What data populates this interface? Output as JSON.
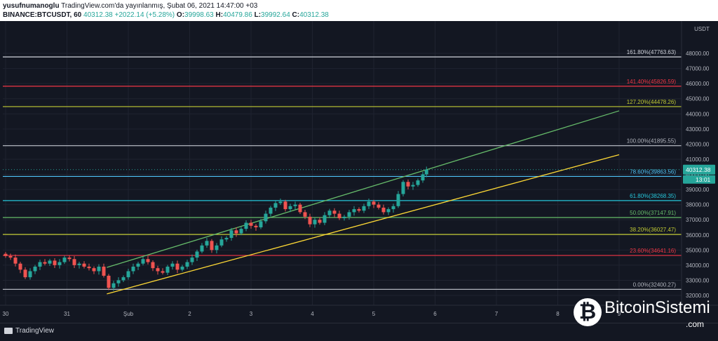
{
  "header": {
    "author": "yusufnumanoglu",
    "published": "TradingView.com'da yayınlanmış, Şubat 06, 2021 14:47:00 +03",
    "symbol": "BINANCE:BTCUSDT, 60",
    "last": "40312.38",
    "change": "+2022.14 (+5.28%)",
    "o_label": "O:",
    "o": "39998.63",
    "h_label": "H:",
    "h": "40479.86",
    "l_label": "L:",
    "l": "39992.64",
    "c_label": "C:",
    "c": "40312.38"
  },
  "footer": {
    "tradingview": "TradingView"
  },
  "watermark": {
    "icon": "bitcoin-icon",
    "name": "BitcoinSistemi",
    "tld": ".com"
  },
  "chart_data": {
    "type": "candlestick",
    "currency": "USDT",
    "price_tag": "40312.38",
    "countdown": "13:01",
    "ylim": [
      31500,
      48500
    ],
    "yticks": [
      "48000.00",
      "47000.00",
      "46000.00",
      "45000.00",
      "44000.00",
      "43000.00",
      "42000.00",
      "41000.00",
      "40000.00",
      "39000.00",
      "38000.00",
      "37000.00",
      "36000.00",
      "35000.00",
      "34000.00",
      "33000.00",
      "32000.00"
    ],
    "xticks": [
      "30",
      "31",
      "Şub",
      "2",
      "3",
      "4",
      "5",
      "6",
      "7",
      "8",
      "9"
    ],
    "fib_levels": [
      {
        "label": "161.80%(47763.63)",
        "value": 47763.63,
        "color": "#d1d4dc"
      },
      {
        "label": "141.40%(45826.59)",
        "value": 45826.59,
        "color": "#f23645"
      },
      {
        "label": "127.20%(44478.26)",
        "value": 44478.26,
        "color": "#c0ca33"
      },
      {
        "label": "100.00%(41895.55)",
        "value": 41895.55,
        "color": "#b2b5be"
      },
      {
        "label": "78.60%(39863.56)",
        "value": 39863.56,
        "color": "#4fc3f7"
      },
      {
        "label": "61.80%(38268.35)",
        "value": 38268.35,
        "color": "#26c6da"
      },
      {
        "label": "50.00%(37147.91)",
        "value": 37147.91,
        "color": "#66bb6a"
      },
      {
        "label": "38.20%(36027.47)",
        "value": 36027.47,
        "color": "#c0ca33"
      },
      {
        "label": "23.60%(34641.16)",
        "value": 34641.16,
        "color": "#f23645"
      },
      {
        "label": "0.00%(32400.27)",
        "value": 32400.27,
        "color": "#b2b5be"
      }
    ],
    "trendlines": [
      {
        "color": "#66bb6a",
        "from": [
          1.65,
          33850
        ],
        "to": [
          10.0,
          44200
        ]
      },
      {
        "color": "#fdd835",
        "from": [
          1.65,
          32100
        ],
        "to": [
          10.0,
          41300
        ]
      }
    ],
    "series_close": [
      [
        0.0,
        34600
      ],
      [
        0.08,
        34500
      ],
      [
        0.16,
        34100
      ],
      [
        0.24,
        33700
      ],
      [
        0.32,
        33200
      ],
      [
        0.4,
        33600
      ],
      [
        0.48,
        33900
      ],
      [
        0.56,
        34200
      ],
      [
        0.64,
        34100
      ],
      [
        0.72,
        34300
      ],
      [
        0.8,
        34000
      ],
      [
        0.88,
        34200
      ],
      [
        0.96,
        34500
      ],
      [
        1.04,
        34400
      ],
      [
        1.12,
        34000
      ],
      [
        1.2,
        34100
      ],
      [
        1.28,
        33900
      ],
      [
        1.36,
        33800
      ],
      [
        1.44,
        33600
      ],
      [
        1.52,
        33900
      ],
      [
        1.6,
        33300
      ],
      [
        1.68,
        32500
      ],
      [
        1.76,
        32800
      ],
      [
        1.84,
        33000
      ],
      [
        1.92,
        33200
      ],
      [
        2.0,
        33600
      ],
      [
        2.08,
        33900
      ],
      [
        2.16,
        34100
      ],
      [
        2.24,
        34400
      ],
      [
        2.32,
        34200
      ],
      [
        2.4,
        33800
      ],
      [
        2.48,
        33600
      ],
      [
        2.56,
        33500
      ],
      [
        2.64,
        33900
      ],
      [
        2.72,
        34100
      ],
      [
        2.8,
        33700
      ],
      [
        2.88,
        33900
      ],
      [
        2.96,
        34200
      ],
      [
        3.04,
        34500
      ],
      [
        3.12,
        34900
      ],
      [
        3.2,
        35300
      ],
      [
        3.28,
        35600
      ],
      [
        3.36,
        35000
      ],
      [
        3.44,
        35300
      ],
      [
        3.52,
        35700
      ],
      [
        3.6,
        35800
      ],
      [
        3.68,
        36300
      ],
      [
        3.76,
        36100
      ],
      [
        3.84,
        36400
      ],
      [
        3.92,
        36800
      ],
      [
        4.0,
        36600
      ],
      [
        4.08,
        36500
      ],
      [
        4.16,
        36900
      ],
      [
        4.24,
        37400
      ],
      [
        4.32,
        37800
      ],
      [
        4.4,
        38100
      ],
      [
        4.48,
        38200
      ],
      [
        4.56,
        37700
      ],
      [
        4.64,
        37900
      ],
      [
        4.72,
        38000
      ],
      [
        4.8,
        37500
      ],
      [
        4.88,
        37200
      ],
      [
        4.96,
        36700
      ],
      [
        5.04,
        37000
      ],
      [
        5.12,
        36800
      ],
      [
        5.2,
        37300
      ],
      [
        5.28,
        37600
      ],
      [
        5.36,
        37400
      ],
      [
        5.44,
        37100
      ],
      [
        5.52,
        37200
      ],
      [
        5.6,
        37500
      ],
      [
        5.68,
        37700
      ],
      [
        5.76,
        37600
      ],
      [
        5.84,
        37900
      ],
      [
        5.92,
        38200
      ],
      [
        6.0,
        38000
      ],
      [
        6.08,
        37800
      ],
      [
        6.16,
        37500
      ],
      [
        6.24,
        37700
      ],
      [
        6.32,
        37900
      ],
      [
        6.4,
        38700
      ],
      [
        6.48,
        39500
      ],
      [
        6.56,
        39200
      ],
      [
        6.64,
        39300
      ],
      [
        6.72,
        39600
      ],
      [
        6.8,
        40000
      ],
      [
        6.86,
        40312
      ]
    ]
  }
}
